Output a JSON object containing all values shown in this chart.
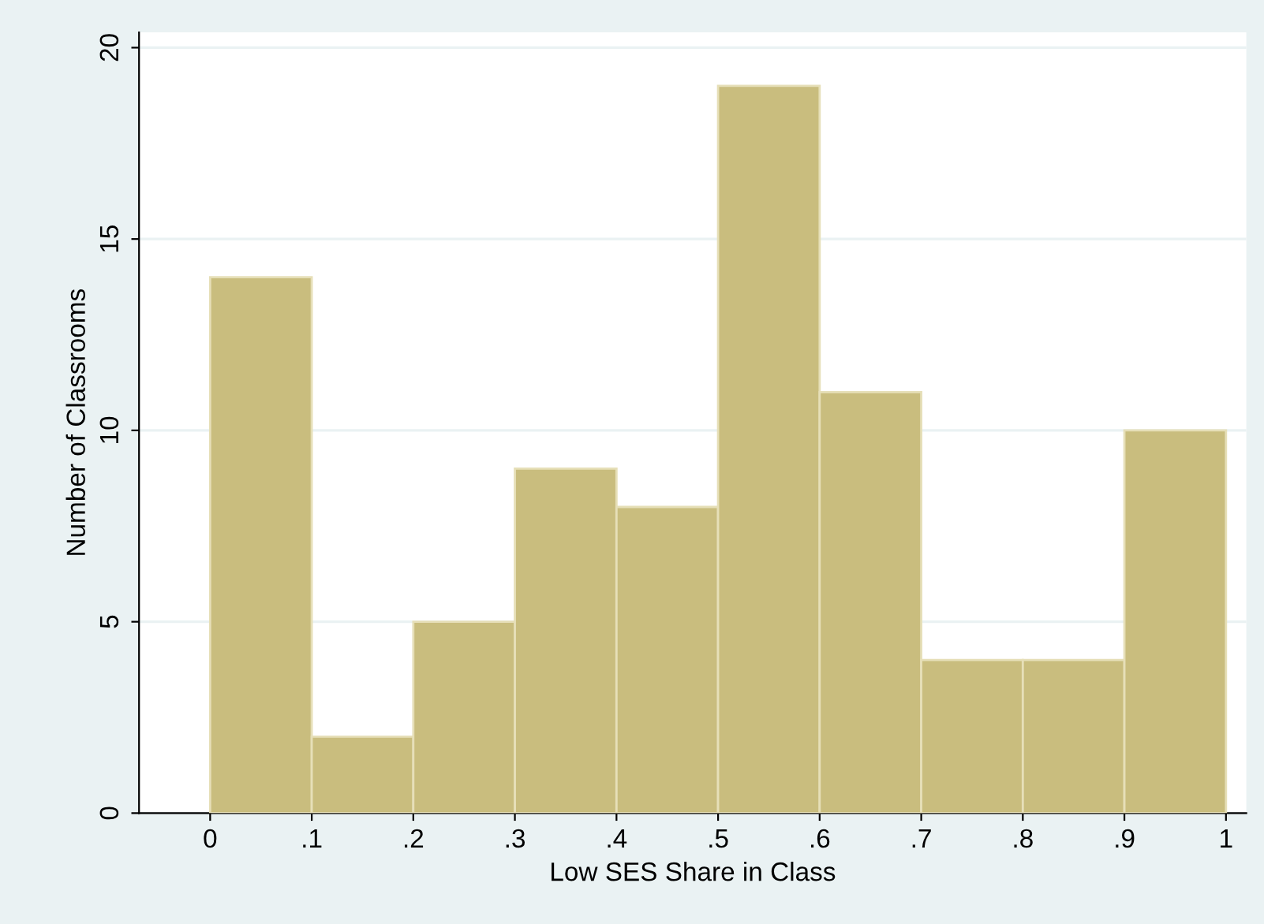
{
  "chart_data": {
    "type": "histogram",
    "xlabel": "Low SES Share in Class",
    "ylabel": "Number of Classrooms",
    "bins": [
      0,
      0.1,
      0.2,
      0.3,
      0.4,
      0.5,
      0.6,
      0.7,
      0.8,
      0.9,
      1
    ],
    "values": [
      14,
      2,
      5,
      9,
      8,
      19,
      11,
      4,
      4,
      10
    ],
    "color": "#c9bd7e",
    "xlim": [
      -0.07,
      1.02
    ],
    "ylim": [
      0,
      20.4
    ],
    "xticks": [
      0,
      {
        "value": 0.1,
        "label": ".1"
      },
      {
        "value": 0.2,
        "label": ".2"
      },
      {
        "value": 0.3,
        "label": ".3"
      },
      {
        "value": 0.4,
        "label": ".4"
      },
      {
        "value": 0.5,
        "label": ".5"
      },
      {
        "value": 0.6,
        "label": ".6"
      },
      {
        "value": 0.7,
        "label": ".7"
      },
      {
        "value": 0.8,
        "label": ".8"
      },
      {
        "value": 0.9,
        "label": ".9"
      },
      1
    ],
    "yticks": [
      0,
      5,
      10,
      15,
      20
    ],
    "grid": "y"
  }
}
